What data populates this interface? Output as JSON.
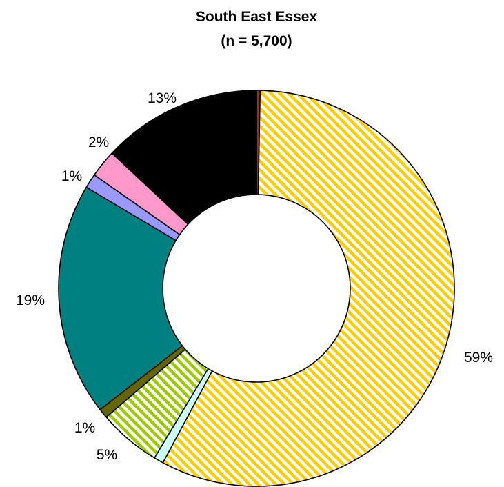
{
  "chart_data": {
    "type": "donut",
    "title": "South East Essex",
    "subtitle": "(n = 5,700)",
    "slices": [
      {
        "value": 0.3,
        "label": "",
        "color": "#993300",
        "pattern": "solid"
      },
      {
        "value": 58.7,
        "label": "59%",
        "color": "#FFCC00",
        "pattern": "hatch"
      },
      {
        "value": 0.8,
        "label": "",
        "color": "#CCFFFF",
        "pattern": "solid"
      },
      {
        "value": 5.2,
        "label": "5%",
        "color": "#99CC00",
        "pattern": "hatch"
      },
      {
        "value": 0.8,
        "label": "1%",
        "color": "#666600",
        "pattern": "solid"
      },
      {
        "value": 19.4,
        "label": "19%",
        "color": "#008080",
        "pattern": "solid"
      },
      {
        "value": 1.2,
        "label": "1%",
        "color": "#9999FF",
        "pattern": "solid"
      },
      {
        "value": 2.3,
        "label": "2%",
        "color": "#FF99CC",
        "pattern": "solid"
      },
      {
        "value": 13.3,
        "label": "13%",
        "color": "#000000",
        "pattern": "solid"
      }
    ]
  }
}
